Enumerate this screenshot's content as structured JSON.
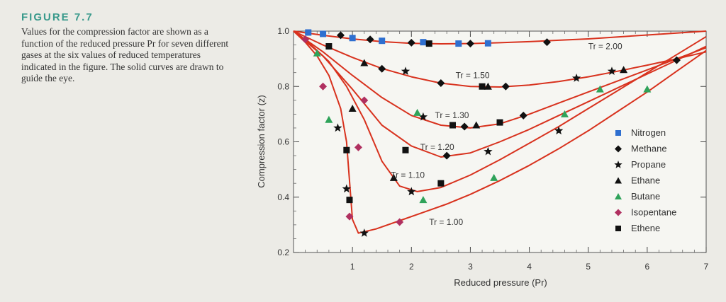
{
  "figure": {
    "label": "FIGURE 7.7",
    "caption": "Values for the compression factor are shown as a function of the reduced pressure Pr for seven different gases at the six values of reduced temperatures indicated in the figure. The solid curves are drawn to guide the eye."
  },
  "chart_data": {
    "type": "scatter",
    "xlabel": "Reduced pressure (Pr)",
    "ylabel": "Compression factor (z)",
    "xlim": [
      0,
      7
    ],
    "ylim": [
      0.2,
      1.0
    ],
    "xticks": [
      "1",
      "2",
      "3",
      "4",
      "5",
      "6",
      "7"
    ],
    "yticks": [
      "0.2",
      "0.4",
      "0.6",
      "0.8",
      "1.0"
    ],
    "legend_position": "right",
    "legend": [
      {
        "name": "Nitrogen",
        "marker": "square",
        "color": "#2e6fd0"
      },
      {
        "name": "Methane",
        "marker": "diamond",
        "color": "#111111"
      },
      {
        "name": "Propane",
        "marker": "star",
        "color": "#111111"
      },
      {
        "name": "Ethane",
        "marker": "triangle",
        "color": "#111111"
      },
      {
        "name": "Butane",
        "marker": "triangle",
        "color": "#2fa35a"
      },
      {
        "name": "Isopentane",
        "marker": "diamond",
        "color": "#b03060"
      },
      {
        "name": "Ethene",
        "marker": "square",
        "color": "#111111"
      }
    ],
    "curve_color": "#d8321e",
    "curves": [
      {
        "label": "Tr = 2.00",
        "x": [
          0,
          0.5,
          1,
          1.5,
          2,
          2.5,
          3,
          3.5,
          4,
          4.5,
          5,
          5.5,
          6,
          6.5,
          7
        ],
        "y": [
          1.0,
          0.985,
          0.972,
          0.962,
          0.956,
          0.954,
          0.955,
          0.958,
          0.962,
          0.967,
          0.972,
          0.979,
          0.986,
          0.993,
          1.0
        ]
      },
      {
        "label": "Tr = 1.50",
        "x": [
          0,
          0.5,
          1,
          1.5,
          2,
          2.5,
          3,
          3.5,
          4,
          4.5,
          5,
          5.5,
          6,
          6.5,
          7
        ],
        "y": [
          1.0,
          0.95,
          0.905,
          0.865,
          0.835,
          0.812,
          0.8,
          0.798,
          0.805,
          0.818,
          0.835,
          0.855,
          0.877,
          0.9,
          0.925
        ]
      },
      {
        "label": "Tr = 1.30",
        "x": [
          0,
          0.5,
          1,
          1.5,
          2,
          2.5,
          3,
          3.5,
          4,
          4.5,
          5,
          5.5,
          6,
          6.5,
          7
        ],
        "y": [
          1.0,
          0.925,
          0.84,
          0.76,
          0.695,
          0.66,
          0.65,
          0.665,
          0.7,
          0.74,
          0.78,
          0.82,
          0.86,
          0.9,
          0.94
        ]
      },
      {
        "label": "Tr = 1.20",
        "x": [
          0,
          0.5,
          1,
          1.5,
          2,
          2.5,
          3,
          3.5,
          4,
          4.5,
          5,
          5.5,
          6,
          6.5,
          7
        ],
        "y": [
          1.0,
          0.91,
          0.79,
          0.66,
          0.585,
          0.545,
          0.56,
          0.6,
          0.645,
          0.695,
          0.745,
          0.795,
          0.845,
          0.895,
          0.945
        ]
      },
      {
        "label": "Tr = 1.10",
        "x": [
          0,
          0.3,
          0.6,
          0.9,
          1.2,
          1.5,
          1.8,
          2.1,
          2.5,
          3,
          3.5,
          4,
          4.5,
          5,
          5.5,
          6,
          6.5,
          7
        ],
        "y": [
          1.0,
          0.95,
          0.89,
          0.8,
          0.68,
          0.53,
          0.44,
          0.42,
          0.435,
          0.48,
          0.535,
          0.595,
          0.655,
          0.72,
          0.785,
          0.85,
          0.915,
          0.98
        ]
      },
      {
        "label": "Tr = 1.00",
        "x": [
          0,
          0.2,
          0.4,
          0.6,
          0.8,
          0.9,
          1.0,
          1.1,
          1.4,
          1.8,
          2.2,
          2.6,
          3,
          3.5,
          4,
          4.5,
          5,
          5.5,
          6,
          6.5,
          7
        ],
        "y": [
          1.0,
          0.96,
          0.91,
          0.84,
          0.72,
          0.6,
          0.32,
          0.27,
          0.285,
          0.315,
          0.345,
          0.375,
          0.41,
          0.46,
          0.515,
          0.575,
          0.64,
          0.71,
          0.78,
          0.855,
          0.93
        ]
      }
    ],
    "points": [
      {
        "gas": "Nitrogen",
        "x": 0.25,
        "y": 0.995
      },
      {
        "gas": "Nitrogen",
        "x": 0.5,
        "y": 0.99
      },
      {
        "gas": "Nitrogen",
        "x": 1.0,
        "y": 0.975
      },
      {
        "gas": "Nitrogen",
        "x": 1.5,
        "y": 0.965
      },
      {
        "gas": "Nitrogen",
        "x": 2.2,
        "y": 0.96
      },
      {
        "gas": "Nitrogen",
        "x": 2.8,
        "y": 0.955
      },
      {
        "gas": "Nitrogen",
        "x": 3.3,
        "y": 0.956
      },
      {
        "gas": "Methane",
        "x": 0.8,
        "y": 0.985
      },
      {
        "gas": "Methane",
        "x": 1.3,
        "y": 0.97
      },
      {
        "gas": "Methane",
        "x": 2.0,
        "y": 0.958
      },
      {
        "gas": "Methane",
        "x": 3.0,
        "y": 0.955
      },
      {
        "gas": "Methane",
        "x": 4.3,
        "y": 0.96
      },
      {
        "gas": "Methane",
        "x": 1.5,
        "y": 0.864
      },
      {
        "gas": "Methane",
        "x": 2.5,
        "y": 0.812
      },
      {
        "gas": "Methane",
        "x": 3.6,
        "y": 0.8
      },
      {
        "gas": "Methane",
        "x": 2.9,
        "y": 0.655
      },
      {
        "gas": "Methane",
        "x": 3.9,
        "y": 0.695
      },
      {
        "gas": "Methane",
        "x": 2.6,
        "y": 0.55
      },
      {
        "gas": "Methane",
        "x": 6.5,
        "y": 0.895
      },
      {
        "gas": "Propane",
        "x": 1.9,
        "y": 0.855
      },
      {
        "gas": "Propane",
        "x": 4.8,
        "y": 0.83
      },
      {
        "gas": "Propane",
        "x": 5.4,
        "y": 0.855
      },
      {
        "gas": "Propane",
        "x": 2.2,
        "y": 0.69
      },
      {
        "gas": "Propane",
        "x": 3.3,
        "y": 0.565
      },
      {
        "gas": "Propane",
        "x": 2.0,
        "y": 0.42
      },
      {
        "gas": "Propane",
        "x": 1.2,
        "y": 0.27
      },
      {
        "gas": "Propane",
        "x": 0.9,
        "y": 0.43
      },
      {
        "gas": "Propane",
        "x": 4.5,
        "y": 0.64
      },
      {
        "gas": "Propane",
        "x": 0.75,
        "y": 0.65
      },
      {
        "gas": "Ethane",
        "x": 1.2,
        "y": 0.885
      },
      {
        "gas": "Ethane",
        "x": 3.3,
        "y": 0.8
      },
      {
        "gas": "Ethane",
        "x": 5.6,
        "y": 0.86
      },
      {
        "gas": "Ethane",
        "x": 3.1,
        "y": 0.66
      },
      {
        "gas": "Ethane",
        "x": 1.7,
        "y": 0.47
      },
      {
        "gas": "Ethane",
        "x": 1.0,
        "y": 0.72
      },
      {
        "gas": "Butane",
        "x": 0.4,
        "y": 0.92
      },
      {
        "gas": "Butane",
        "x": 2.1,
        "y": 0.705
      },
      {
        "gas": "Butane",
        "x": 4.6,
        "y": 0.7
      },
      {
        "gas": "Butane",
        "x": 6.0,
        "y": 0.79
      },
      {
        "gas": "Butane",
        "x": 5.2,
        "y": 0.79
      },
      {
        "gas": "Butane",
        "x": 2.2,
        "y": 0.39
      },
      {
        "gas": "Butane",
        "x": 3.4,
        "y": 0.47
      },
      {
        "gas": "Butane",
        "x": 0.6,
        "y": 0.68
      },
      {
        "gas": "Isopentane",
        "x": 0.2,
        "y": 0.97
      },
      {
        "gas": "Isopentane",
        "x": 0.5,
        "y": 0.8
      },
      {
        "gas": "Isopentane",
        "x": 1.2,
        "y": 0.75
      },
      {
        "gas": "Isopentane",
        "x": 0.95,
        "y": 0.33
      },
      {
        "gas": "Isopentane",
        "x": 1.8,
        "y": 0.31
      },
      {
        "gas": "Isopentane",
        "x": 1.1,
        "y": 0.58
      },
      {
        "gas": "Ethene",
        "x": 0.6,
        "y": 0.945
      },
      {
        "gas": "Ethene",
        "x": 2.3,
        "y": 0.955
      },
      {
        "gas": "Ethene",
        "x": 3.2,
        "y": 0.8
      },
      {
        "gas": "Ethene",
        "x": 2.7,
        "y": 0.66
      },
      {
        "gas": "Ethene",
        "x": 3.5,
        "y": 0.67
      },
      {
        "gas": "Ethene",
        "x": 1.9,
        "y": 0.57
      },
      {
        "gas": "Ethene",
        "x": 0.95,
        "y": 0.39
      },
      {
        "gas": "Ethene",
        "x": 2.5,
        "y": 0.45
      },
      {
        "gas": "Ethene",
        "x": 0.9,
        "y": 0.57
      }
    ]
  }
}
